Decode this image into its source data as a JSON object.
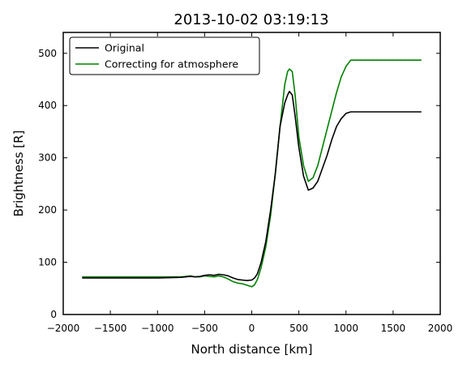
{
  "chart_data": {
    "type": "line",
    "title": "2013-10-02 03:19:13",
    "xlabel": "North distance [km]",
    "ylabel": "Brightness [R]",
    "xlim": [
      -2000,
      2000
    ],
    "ylim": [
      0,
      540
    ],
    "xticks": [
      -2000,
      -1500,
      -1000,
      -500,
      0,
      500,
      1000,
      1500,
      2000
    ],
    "yticks": [
      0,
      100,
      200,
      300,
      400,
      500
    ],
    "xtick_labels": [
      "−2000",
      "−1500",
      "−1000",
      "−500",
      "0",
      "500",
      "1000",
      "1500",
      "2000"
    ],
    "ytick_labels": [
      "0",
      "100",
      "200",
      "300",
      "400",
      "500"
    ],
    "legend_position": "upper-left",
    "series": [
      {
        "name": "Original",
        "color": "#000000",
        "x": [
          -1800,
          -1000,
          -750,
          -700,
          -650,
          -600,
          -550,
          -500,
          -450,
          -400,
          -350,
          -300,
          -250,
          -200,
          -150,
          -100,
          -50,
          0,
          30,
          60,
          100,
          150,
          200,
          250,
          300,
          350,
          380,
          400,
          430,
          460,
          500,
          550,
          600,
          650,
          700,
          750,
          800,
          850,
          900,
          950,
          1000,
          1050,
          1800
        ],
        "y": [
          70,
          70,
          71,
          72,
          73,
          72,
          73,
          75,
          76,
          75,
          77,
          76,
          74,
          70,
          67,
          66,
          65,
          66,
          70,
          78,
          100,
          140,
          200,
          270,
          360,
          405,
          420,
          427,
          420,
          380,
          320,
          265,
          238,
          242,
          255,
          280,
          305,
          335,
          360,
          375,
          385,
          388,
          388
        ]
      },
      {
        "name": "Correcting for atmosphere",
        "color": "#008000",
        "x": [
          -1800,
          -1000,
          -750,
          -700,
          -650,
          -600,
          -550,
          -500,
          -450,
          -400,
          -350,
          -300,
          -250,
          -200,
          -150,
          -100,
          -50,
          0,
          30,
          60,
          100,
          150,
          200,
          250,
          300,
          350,
          380,
          400,
          430,
          460,
          500,
          550,
          600,
          650,
          700,
          750,
          800,
          850,
          900,
          950,
          1000,
          1050,
          1800
        ],
        "y": [
          72,
          72,
          72,
          73,
          74,
          72,
          72,
          74,
          73,
          72,
          74,
          72,
          68,
          63,
          60,
          59,
          56,
          53,
          57,
          67,
          90,
          130,
          190,
          270,
          360,
          440,
          465,
          470,
          465,
          420,
          340,
          285,
          255,
          262,
          285,
          320,
          355,
          390,
          425,
          455,
          475,
          487,
          487
        ]
      }
    ]
  }
}
